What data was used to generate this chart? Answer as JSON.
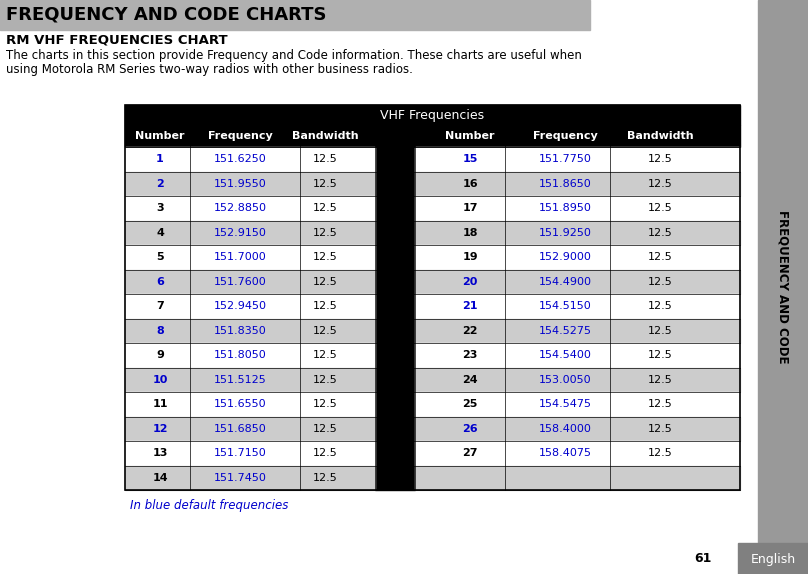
{
  "title": "FREQUENCY AND CODE CHARTS",
  "subtitle": "RM VHF FREQUENCIES CHART",
  "body_line1": "The charts in this section provide Frequency and Code information. These charts are useful when",
  "body_line2": "using Motorola RM Series two-way radios with other business radios.",
  "table_title": "VHF Frequencies",
  "col_headers": [
    "Number",
    "Frequency",
    "Bandwidth"
  ],
  "left_data": [
    [
      "1",
      "151.6250",
      "12.5"
    ],
    [
      "2",
      "151.9550",
      "12.5"
    ],
    [
      "3",
      "152.8850",
      "12.5"
    ],
    [
      "4",
      "152.9150",
      "12.5"
    ],
    [
      "5",
      "151.7000",
      "12.5"
    ],
    [
      "6",
      "151.7600",
      "12.5"
    ],
    [
      "7",
      "152.9450",
      "12.5"
    ],
    [
      "8",
      "151.8350",
      "12.5"
    ],
    [
      "9",
      "151.8050",
      "12.5"
    ],
    [
      "10",
      "151.5125",
      "12.5"
    ],
    [
      "11",
      "151.6550",
      "12.5"
    ],
    [
      "12",
      "151.6850",
      "12.5"
    ],
    [
      "13",
      "151.7150",
      "12.5"
    ],
    [
      "14",
      "151.7450",
      "12.5"
    ]
  ],
  "right_data": [
    [
      "15",
      "151.7750",
      "12.5"
    ],
    [
      "16",
      "151.8650",
      "12.5"
    ],
    [
      "17",
      "151.8950",
      "12.5"
    ],
    [
      "18",
      "151.9250",
      "12.5"
    ],
    [
      "19",
      "152.9000",
      "12.5"
    ],
    [
      "20",
      "154.4900",
      "12.5"
    ],
    [
      "21",
      "154.5150",
      "12.5"
    ],
    [
      "22",
      "154.5275",
      "12.5"
    ],
    [
      "23",
      "154.5400",
      "12.5"
    ],
    [
      "24",
      "153.0050",
      "12.5"
    ],
    [
      "25",
      "154.5475",
      "12.5"
    ],
    [
      "26",
      "158.4000",
      "12.5"
    ],
    [
      "27",
      "158.4075",
      "12.5"
    ],
    [
      "",
      "",
      ""
    ]
  ],
  "blue_nums_left": [
    "1",
    "2",
    "6",
    "8",
    "10",
    "12"
  ],
  "blue_nums_right": [
    "15",
    "20",
    "21",
    "26"
  ],
  "footer_note": "In blue default frequencies",
  "side_label": "FREQUENCY AND CODE",
  "page_num": "61",
  "page_label": "English",
  "bg_color": "#ffffff",
  "title_bg": "#b0b0b0",
  "table_header_bg": "#000000",
  "blue_color": "#0000cc",
  "gray_row_color": "#cccccc",
  "white_row_color": "#ffffff",
  "side_bg": "#999999",
  "english_bg": "#808080",
  "english_fg": "#ffffff"
}
